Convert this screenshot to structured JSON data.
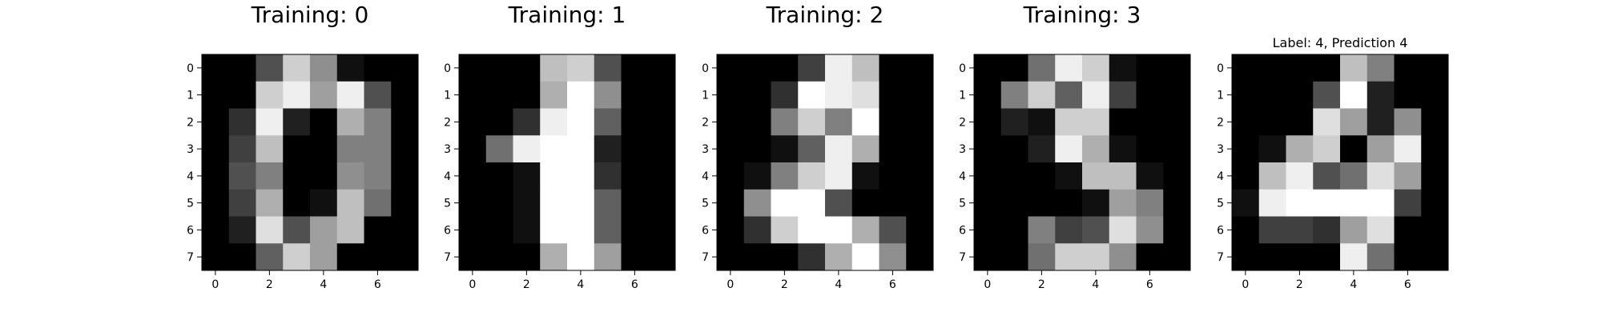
{
  "chart_data": [
    {
      "type": "heatmap",
      "title": "Training: 0",
      "colormap": "gray_r",
      "vmin": 0,
      "vmax": 16,
      "xticks": [
        0,
        2,
        4,
        6
      ],
      "yticks": [
        0,
        1,
        2,
        3,
        4,
        5,
        6,
        7
      ],
      "values": [
        [
          0,
          0,
          5,
          13,
          9,
          1,
          0,
          0
        ],
        [
          0,
          0,
          13,
          15,
          10,
          15,
          5,
          0
        ],
        [
          0,
          3,
          15,
          2,
          0,
          11,
          8,
          0
        ],
        [
          0,
          4,
          12,
          0,
          0,
          8,
          8,
          0
        ],
        [
          0,
          5,
          8,
          0,
          0,
          9,
          8,
          0
        ],
        [
          0,
          4,
          11,
          0,
          1,
          12,
          7,
          0
        ],
        [
          0,
          2,
          14,
          5,
          10,
          12,
          0,
          0
        ],
        [
          0,
          0,
          6,
          13,
          10,
          0,
          0,
          0
        ]
      ]
    },
    {
      "type": "heatmap",
      "title": "Training: 1",
      "colormap": "gray_r",
      "vmin": 0,
      "vmax": 16,
      "xticks": [
        0,
        2,
        4,
        6
      ],
      "yticks": [
        0,
        1,
        2,
        3,
        4,
        5,
        6,
        7
      ],
      "values": [
        [
          0,
          0,
          0,
          12,
          13,
          5,
          0,
          0
        ],
        [
          0,
          0,
          0,
          11,
          16,
          9,
          0,
          0
        ],
        [
          0,
          0,
          3,
          15,
          16,
          6,
          0,
          0
        ],
        [
          0,
          7,
          15,
          16,
          16,
          2,
          0,
          0
        ],
        [
          0,
          0,
          1,
          16,
          16,
          3,
          0,
          0
        ],
        [
          0,
          0,
          1,
          16,
          16,
          6,
          0,
          0
        ],
        [
          0,
          0,
          1,
          16,
          16,
          6,
          0,
          0
        ],
        [
          0,
          0,
          0,
          11,
          16,
          10,
          0,
          0
        ]
      ]
    },
    {
      "type": "heatmap",
      "title": "Training: 2",
      "colormap": "gray_r",
      "vmin": 0,
      "vmax": 16,
      "xticks": [
        0,
        2,
        4,
        6
      ],
      "yticks": [
        0,
        1,
        2,
        3,
        4,
        5,
        6,
        7
      ],
      "values": [
        [
          0,
          0,
          0,
          4,
          15,
          12,
          0,
          0
        ],
        [
          0,
          0,
          3,
          16,
          15,
          14,
          0,
          0
        ],
        [
          0,
          0,
          8,
          13,
          8,
          16,
          0,
          0
        ],
        [
          0,
          0,
          1,
          6,
          15,
          11,
          0,
          0
        ],
        [
          0,
          1,
          8,
          13,
          15,
          1,
          0,
          0
        ],
        [
          0,
          9,
          16,
          16,
          5,
          0,
          0,
          0
        ],
        [
          0,
          3,
          13,
          16,
          16,
          11,
          5,
          0
        ],
        [
          0,
          0,
          0,
          3,
          11,
          16,
          9,
          0
        ]
      ]
    },
    {
      "type": "heatmap",
      "title": "Training: 3",
      "colormap": "gray_r",
      "vmin": 0,
      "vmax": 16,
      "xticks": [
        0,
        2,
        4,
        6
      ],
      "yticks": [
        0,
        1,
        2,
        3,
        4,
        5,
        6,
        7
      ],
      "values": [
        [
          0,
          0,
          7,
          15,
          13,
          1,
          0,
          0
        ],
        [
          0,
          8,
          13,
          6,
          15,
          4,
          0,
          0
        ],
        [
          0,
          2,
          1,
          13,
          13,
          0,
          0,
          0
        ],
        [
          0,
          0,
          2,
          15,
          11,
          1,
          0,
          0
        ],
        [
          0,
          0,
          0,
          1,
          12,
          12,
          1,
          0
        ],
        [
          0,
          0,
          0,
          0,
          1,
          10,
          8,
          0
        ],
        [
          0,
          0,
          8,
          4,
          5,
          14,
          9,
          0
        ],
        [
          0,
          0,
          7,
          13,
          13,
          9,
          0,
          0
        ]
      ]
    },
    {
      "type": "heatmap",
      "title": "Label: 4, Prediction 4",
      "colormap": "gray_r",
      "vmin": 0,
      "vmax": 16,
      "xticks": [
        0,
        2,
        4,
        6
      ],
      "yticks": [
        0,
        1,
        2,
        3,
        4,
        5,
        6,
        7
      ],
      "values": [
        [
          0,
          0,
          0,
          0,
          12,
          8,
          0,
          0
        ],
        [
          0,
          0,
          0,
          5,
          16,
          2,
          0,
          0
        ],
        [
          0,
          0,
          0,
          14,
          10,
          2,
          9,
          0
        ],
        [
          0,
          1,
          11,
          13,
          0,
          10,
          15,
          0
        ],
        [
          0,
          12,
          15,
          5,
          7,
          14,
          10,
          0
        ],
        [
          1,
          15,
          16,
          16,
          16,
          16,
          4,
          0
        ],
        [
          0,
          4,
          4,
          3,
          10,
          14,
          0,
          0
        ],
        [
          0,
          0,
          0,
          0,
          15,
          7,
          0,
          0
        ]
      ]
    }
  ]
}
